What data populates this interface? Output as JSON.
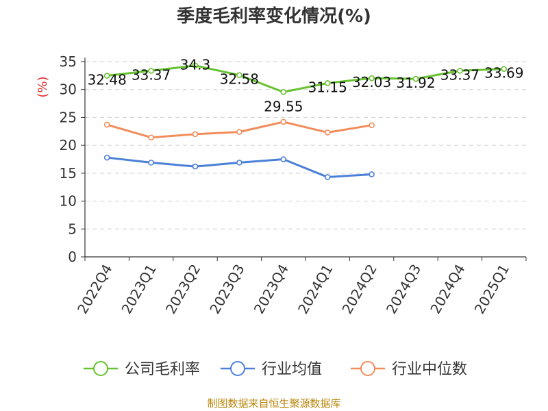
{
  "chart_data": {
    "type": "line",
    "title": "季度毛利率变化情况(%)",
    "ylabel": "(%)",
    "ylim": [
      0,
      35
    ],
    "yticks": [
      0,
      5,
      10,
      15,
      20,
      25,
      30,
      35
    ],
    "grid": true,
    "legend_position": "bottom",
    "categories": [
      "2022Q4",
      "2023Q1",
      "2023Q2",
      "2023Q3",
      "2023Q4",
      "2024Q1",
      "2024Q2",
      "2024Q3",
      "2024Q4",
      "2025Q1"
    ],
    "series": [
      {
        "name": "公司毛利率",
        "color": "#66c22e",
        "values": [
          32.48,
          33.37,
          34.3,
          32.58,
          29.55,
          31.15,
          32.03,
          31.92,
          33.37,
          33.69
        ],
        "labels": [
          "32.48",
          "33.37",
          "34.3",
          "32.58",
          "29.55",
          "31.15",
          "32.03",
          "31.92",
          "33.37",
          "33.69"
        ]
      },
      {
        "name": "行业均值",
        "color": "#4a7fd8",
        "values": [
          17.8,
          16.9,
          16.2,
          16.9,
          17.5,
          14.3,
          14.8,
          null,
          null,
          null
        ]
      },
      {
        "name": "行业中位数",
        "color": "#f28c5a",
        "values": [
          23.7,
          21.4,
          22.0,
          22.4,
          24.2,
          22.3,
          23.6,
          null,
          null,
          null
        ]
      }
    ]
  },
  "source": "制图数据来自恒生聚源数据库"
}
